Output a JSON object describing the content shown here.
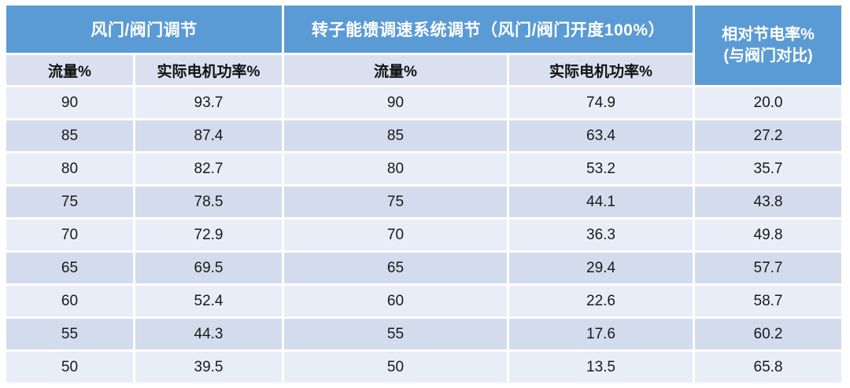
{
  "chart_data": {
    "type": "table",
    "title": "",
    "column_groups": [
      "风门/阀门调节",
      "转子能馈调速系统调节（风门/阀门开度100%）",
      "相对节电率% (与阀门对比)"
    ],
    "columns": [
      "流量%",
      "实际电机功率%",
      "流量%",
      "实际电机功率%",
      "相对节电率%(与阀门对比)"
    ],
    "rows": [
      [
        90,
        93.7,
        90,
        74.9,
        20.0
      ],
      [
        85,
        87.4,
        85,
        63.4,
        27.2
      ],
      [
        80,
        82.7,
        80,
        53.2,
        35.7
      ],
      [
        75,
        78.5,
        75,
        44.1,
        43.8
      ],
      [
        70,
        72.9,
        70,
        36.3,
        49.8
      ],
      [
        65,
        69.5,
        65,
        29.4,
        57.7
      ],
      [
        60,
        52.4,
        60,
        22.6,
        58.7
      ],
      [
        55,
        44.3,
        55,
        17.6,
        60.2
      ],
      [
        50,
        39.5,
        50,
        13.5,
        65.8
      ]
    ]
  },
  "table": {
    "group1_label": "风门/阀门调节",
    "group2_label": "转子能馈调速系统调节（风门/阀门开度100%）",
    "merged_header_line1": "相对节电率%",
    "merged_header_line2": "(与阀门对比)",
    "subheaders": [
      "流量%",
      "实际电机功率%",
      "流量%",
      "实际电机功率%"
    ],
    "rows": [
      [
        "90",
        "93.7",
        "90",
        "74.9",
        "20.0"
      ],
      [
        "85",
        "87.4",
        "85",
        "63.4",
        "27.2"
      ],
      [
        "80",
        "82.7",
        "80",
        "53.2",
        "35.7"
      ],
      [
        "75",
        "78.5",
        "75",
        "44.1",
        "43.8"
      ],
      [
        "70",
        "72.9",
        "70",
        "36.3",
        "49.8"
      ],
      [
        "65",
        "69.5",
        "65",
        "29.4",
        "57.7"
      ],
      [
        "60",
        "52.4",
        "60",
        "22.6",
        "58.7"
      ],
      [
        "55",
        "44.3",
        "55",
        "17.6",
        "60.2"
      ],
      [
        "50",
        "39.5",
        "50",
        "13.5",
        "65.8"
      ]
    ]
  },
  "colors": {
    "header_blue": "#5B9BD5",
    "subheader_bg": "#DAE0EF",
    "row_light": "#E9EDF7",
    "row_dark": "#D3DCEC",
    "header_text": "#FFFFFF",
    "body_text": "#1A1A1A",
    "background": "#FFFFFF"
  }
}
